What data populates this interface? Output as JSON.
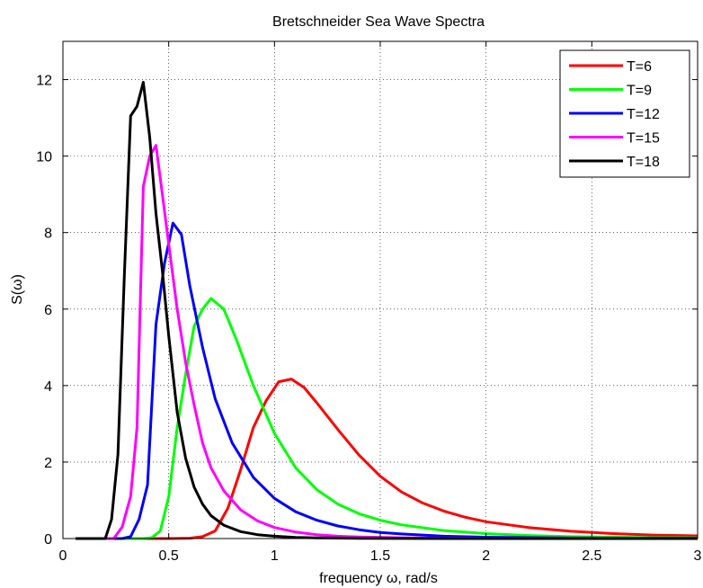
{
  "chart_data": {
    "type": "line",
    "title": "Bretschneider Sea Wave Spectra",
    "xlabel": "frequency ω, rad/s",
    "ylabel": "S(ω)",
    "xlim": [
      0,
      3
    ],
    "ylim": [
      0,
      13
    ],
    "xticks": [
      0,
      0.5,
      1,
      1.5,
      2,
      2.5,
      3
    ],
    "xtick_labels": [
      "0",
      "0.5",
      "1",
      "1.5",
      "2",
      "2.5",
      "3"
    ],
    "yticks": [
      0,
      2,
      4,
      6,
      8,
      10,
      12
    ],
    "ytick_labels": [
      "0",
      "2",
      "4",
      "6",
      "8",
      "10",
      "12"
    ],
    "grid": true,
    "legend_position": "top-right",
    "series": [
      {
        "name": "T=6",
        "color": "#ff0000",
        "x": [
          0.06,
          0.5,
          0.6,
          0.66,
          0.72,
          0.78,
          0.84,
          0.9,
          0.96,
          1.02,
          1.08,
          1.14,
          1.2,
          1.3,
          1.4,
          1.5,
          1.6,
          1.7,
          1.8,
          1.9,
          2.0,
          2.2,
          2.4,
          2.6,
          2.8,
          3.0
        ],
        "y": [
          0,
          0,
          0.01,
          0.05,
          0.2,
          0.8,
          1.8,
          2.9,
          3.6,
          4.1,
          4.17,
          3.95,
          3.55,
          2.85,
          2.18,
          1.63,
          1.22,
          0.93,
          0.72,
          0.56,
          0.44,
          0.29,
          0.19,
          0.13,
          0.09,
          0.07
        ]
      },
      {
        "name": "T=9",
        "color": "#00ff00",
        "x": [
          0.06,
          0.38,
          0.42,
          0.46,
          0.5,
          0.54,
          0.58,
          0.62,
          0.66,
          0.7,
          0.76,
          0.82,
          0.9,
          1.0,
          1.1,
          1.2,
          1.3,
          1.4,
          1.5,
          1.6,
          1.8,
          2.0,
          2.2,
          2.4,
          2.6,
          2.8,
          3.0
        ],
        "y": [
          0,
          0,
          0.02,
          0.2,
          1.1,
          2.9,
          4.3,
          5.55,
          6.0,
          6.28,
          6.0,
          5.2,
          4.0,
          2.75,
          1.85,
          1.28,
          0.9,
          0.65,
          0.48,
          0.36,
          0.21,
          0.13,
          0.08,
          0.05,
          0.035,
          0.025,
          0.02
        ]
      },
      {
        "name": "T=12",
        "color": "#0000ff",
        "x": [
          0.06,
          0.28,
          0.32,
          0.36,
          0.4,
          0.44,
          0.48,
          0.52,
          0.56,
          0.6,
          0.66,
          0.72,
          0.8,
          0.9,
          1.0,
          1.1,
          1.2,
          1.3,
          1.4,
          1.5,
          1.6,
          1.8,
          2.0,
          2.4,
          2.8,
          3.0
        ],
        "y": [
          0,
          0,
          0.05,
          0.5,
          1.4,
          5.6,
          7.2,
          8.25,
          7.95,
          6.6,
          5.0,
          3.65,
          2.5,
          1.6,
          1.05,
          0.7,
          0.48,
          0.33,
          0.23,
          0.16,
          0.12,
          0.06,
          0.035,
          0.015,
          0.007,
          0.005
        ]
      },
      {
        "name": "T=15",
        "color": "#ff00ff",
        "x": [
          0.06,
          0.24,
          0.28,
          0.32,
          0.35,
          0.38,
          0.41,
          0.44,
          0.47,
          0.5,
          0.54,
          0.58,
          0.62,
          0.66,
          0.7,
          0.76,
          0.84,
          0.92,
          1.0,
          1.1,
          1.2,
          1.3,
          1.4,
          1.6,
          1.8,
          2.0,
          2.4,
          3.0
        ],
        "y": [
          0,
          0,
          0.3,
          1.1,
          2.9,
          9.2,
          10.0,
          10.28,
          9.0,
          7.7,
          6.0,
          4.6,
          3.5,
          2.5,
          1.85,
          1.25,
          0.75,
          0.46,
          0.29,
          0.17,
          0.1,
          0.06,
          0.04,
          0.02,
          0.01,
          0.005,
          0.002,
          0.001
        ]
      },
      {
        "name": "T=18",
        "color": "#000000",
        "x": [
          0.06,
          0.2,
          0.23,
          0.26,
          0.29,
          0.32,
          0.35,
          0.38,
          0.41,
          0.44,
          0.47,
          0.5,
          0.54,
          0.58,
          0.62,
          0.66,
          0.7,
          0.76,
          0.84,
          0.92,
          1.0,
          1.1,
          1.2,
          1.4,
          1.6,
          2.0,
          3.0
        ],
        "y": [
          0,
          0,
          0.5,
          2.2,
          6.8,
          11.05,
          11.3,
          11.93,
          10.5,
          8.5,
          7.0,
          5.3,
          3.3,
          2.1,
          1.35,
          0.9,
          0.6,
          0.35,
          0.18,
          0.1,
          0.06,
          0.03,
          0.017,
          0.006,
          0.003,
          0.001,
          0
        ]
      }
    ]
  }
}
